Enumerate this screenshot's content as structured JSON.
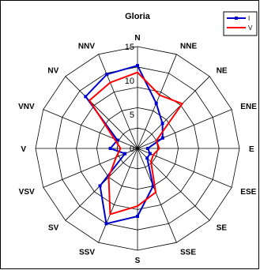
{
  "chart_data": {
    "type": "radar",
    "title": "Gloria",
    "directions": [
      "N",
      "NNE",
      "NE",
      "ENE",
      "E",
      "ESE",
      "SE",
      "SSE",
      "S",
      "SSV",
      "SV",
      "VSV",
      "V",
      "VNV",
      "NV",
      "NNV"
    ],
    "rlim": [
      0,
      15
    ],
    "ticks": [
      0,
      5,
      10,
      15
    ],
    "tick_labels": [
      "0",
      "5",
      "10",
      "15"
    ],
    "grid": true,
    "legend_position": "top-right",
    "series": [
      {
        "name": "I",
        "color": "#0000cc",
        "marker": "square",
        "values": [
          12.2,
          7.2,
          5.2,
          4.0,
          1.5,
          2.0,
          2.0,
          6.0,
          10.0,
          12.0,
          7.8,
          2.0,
          4.0,
          3.2,
          10.8,
          11.8
        ]
      },
      {
        "name": "V",
        "color": "#ff0000",
        "marker": "none",
        "values": [
          11.2,
          8.5,
          9.3,
          3.0,
          3.2,
          2.5,
          2.8,
          7.0,
          8.5,
          10.5,
          6.0,
          3.4,
          2.5,
          3.7,
          10.0,
          10.5
        ]
      }
    ]
  }
}
